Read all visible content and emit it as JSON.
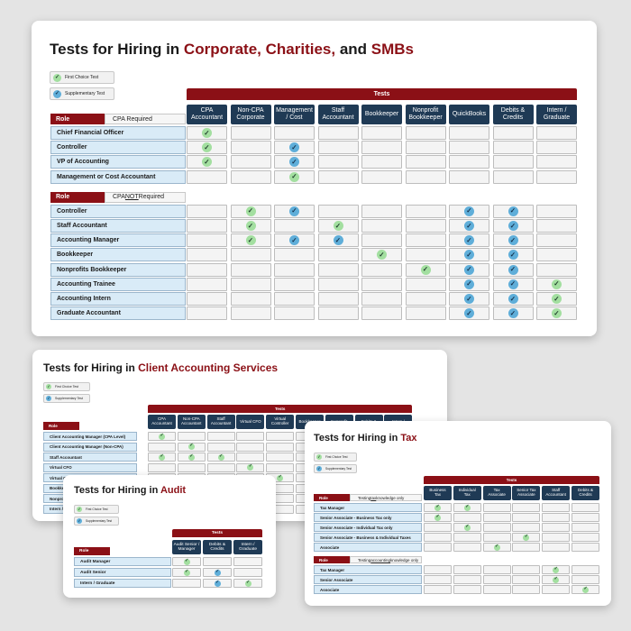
{
  "legend": {
    "first": "First Choice Test",
    "supplementary": "Supplementary Test"
  },
  "tests_label": "Tests",
  "role_label": "Role",
  "icons": {
    "first": "check-circle-green-icon",
    "supplementary": "check-circle-blue-icon"
  },
  "colors": {
    "accent": "#8b1016",
    "header": "#1f3a55",
    "role_bg": "#d9ebf7",
    "first": "#a3dfa0",
    "supplementary": "#5faed9"
  },
  "cards": {
    "corporate": {
      "title_prefix": "Tests for Hiring in ",
      "title_parts": [
        "Corporate, ",
        "Charities, ",
        "and ",
        "SMBs"
      ],
      "columns": [
        "CPA\nAccountant",
        "Non-CPA\nCorporate",
        "Management\n/ Cost",
        "Staff\nAccountant",
        "Bookkeeper",
        "Nonprofit\nBookkeeper",
        "QuickBooks",
        "Debits &\nCredits",
        "Intern /\nGraduate"
      ],
      "sections": [
        {
          "label_pre": "CPA Required",
          "label_u": "",
          "label_post": "",
          "rows": [
            {
              "role": "Chief Financial Officer",
              "marks": [
                "F",
                "",
                "",
                "",
                "",
                "",
                "",
                "",
                ""
              ]
            },
            {
              "role": "Controller",
              "marks": [
                "F",
                "",
                "S",
                "",
                "",
                "",
                "",
                "",
                ""
              ]
            },
            {
              "role": "VP of Accounting",
              "marks": [
                "F",
                "",
                "S",
                "",
                "",
                "",
                "",
                "",
                ""
              ]
            },
            {
              "role": "Management or Cost Accountant",
              "marks": [
                "",
                "",
                "F",
                "",
                "",
                "",
                "",
                "",
                ""
              ]
            }
          ]
        },
        {
          "label_pre": "CPA ",
          "label_u": "NOT",
          "label_post": " Required",
          "rows": [
            {
              "role": "Controller",
              "marks": [
                "",
                "F",
                "S",
                "",
                "",
                "",
                "S",
                "S",
                ""
              ]
            },
            {
              "role": "Staff Accountant",
              "marks": [
                "",
                "F",
                "",
                "F",
                "",
                "",
                "S",
                "S",
                ""
              ]
            },
            {
              "role": "Accounting Manager",
              "marks": [
                "",
                "F",
                "S",
                "S",
                "",
                "",
                "S",
                "S",
                ""
              ]
            },
            {
              "role": "Bookkeeper",
              "marks": [
                "",
                "",
                "",
                "",
                "F",
                "",
                "S",
                "S",
                ""
              ]
            },
            {
              "role": "Nonprofits Bookkeeper",
              "marks": [
                "",
                "",
                "",
                "",
                "",
                "F",
                "S",
                "S",
                ""
              ]
            },
            {
              "role": "Accounting Trainee",
              "marks": [
                "",
                "",
                "",
                "",
                "",
                "",
                "S",
                "S",
                "F"
              ]
            },
            {
              "role": "Accounting Intern",
              "marks": [
                "",
                "",
                "",
                "",
                "",
                "",
                "S",
                "S",
                "F"
              ]
            },
            {
              "role": "Graduate Accountant",
              "marks": [
                "",
                "",
                "",
                "",
                "",
                "",
                "S",
                "S",
                "F"
              ]
            }
          ]
        }
      ]
    },
    "cas": {
      "title_prefix": "Tests for Hiring in ",
      "title_highlight": "Client Accounting Services",
      "columns": [
        "CPA\nAccountant",
        "Non-CPA\nAccountant",
        "Staff\nAccountant",
        "Virtual CFO",
        "Virtual\nController",
        "Bookkeeper",
        "Nonprofit",
        "Debits &",
        "Intern /"
      ],
      "rows": [
        {
          "role": "Client Accounting Manager (CPA Level)",
          "marks": [
            "F",
            "",
            "",
            "",
            "",
            "",
            "",
            "",
            ""
          ]
        },
        {
          "role": "Client Accounting Manager (Non-CPA)",
          "marks": [
            "",
            "F",
            "",
            "",
            "",
            "",
            "",
            "",
            ""
          ]
        },
        {
          "role": "Staff Accountant",
          "marks": [
            "F",
            "F",
            "F",
            "",
            "",
            "",
            "",
            "",
            ""
          ]
        },
        {
          "role": "Virtual CFO",
          "marks": [
            "",
            "",
            "",
            "F",
            "",
            "",
            "",
            "",
            ""
          ]
        },
        {
          "role": "Virtual C",
          "marks": [
            "",
            "",
            "",
            "",
            "F",
            "",
            "",
            "",
            ""
          ]
        },
        {
          "role": "Bookke",
          "marks": [
            "",
            "",
            "",
            "",
            "",
            "F",
            "",
            "",
            ""
          ]
        },
        {
          "role": "Nonpro",
          "marks": [
            "",
            "",
            "",
            "",
            "",
            "",
            "",
            "",
            ""
          ]
        },
        {
          "role": "Intern /",
          "marks": [
            "",
            "",
            "",
            "",
            "",
            "",
            "",
            "",
            ""
          ]
        }
      ]
    },
    "tax": {
      "title_prefix": "Tests for Hiring in ",
      "title_highlight": "Tax",
      "columns": [
        "Business\nTax",
        "Individual\nTax",
        "Tax\nAssociate",
        "Senior Tax\nAssociate",
        "Staff\nAccountant",
        "Debits &\nCredits"
      ],
      "sections": [
        {
          "label_pre": "Testing ",
          "label_u": "tax",
          "label_post": " knowledge only",
          "rows": [
            {
              "role": "Tax Manager",
              "marks": [
                "F",
                "F",
                "",
                "",
                "",
                ""
              ]
            },
            {
              "role": "Senior Associate - Business Tax only",
              "marks": [
                "F",
                "",
                "",
                "",
                "",
                ""
              ]
            },
            {
              "role": "Senior Associate - Individual Tax only",
              "marks": [
                "",
                "F",
                "",
                "",
                "",
                ""
              ]
            },
            {
              "role": "Senior Associate - Business & Individual Taxes",
              "marks": [
                "",
                "",
                "",
                "F",
                "",
                ""
              ]
            },
            {
              "role": "Associate",
              "marks": [
                "",
                "",
                "F",
                "",
                "",
                ""
              ]
            }
          ]
        },
        {
          "label_pre": "Testing ",
          "label_u": "accounting",
          "label_post": " knowledge only",
          "rows": [
            {
              "role": "Tax Manager",
              "marks": [
                "",
                "",
                "",
                "",
                "F",
                ""
              ]
            },
            {
              "role": "Senior Associate",
              "marks": [
                "",
                "",
                "",
                "",
                "F",
                ""
              ]
            },
            {
              "role": "Associate",
              "marks": [
                "",
                "",
                "",
                "",
                "",
                "F"
              ]
            }
          ]
        }
      ]
    },
    "audit": {
      "title_prefix": "Tests for Hiring in ",
      "title_highlight": "Audit",
      "columns": [
        "Audit Senior /\nManager",
        "Debits &\nCredits",
        "Intern /\nGraduate"
      ],
      "rows": [
        {
          "role": "Audit Manager",
          "marks": [
            "F",
            "",
            ""
          ]
        },
        {
          "role": "Audit Senior",
          "marks": [
            "F",
            "S",
            ""
          ]
        },
        {
          "role": "Intern / Graduate",
          "marks": [
            "",
            "S",
            "F"
          ]
        }
      ]
    }
  }
}
